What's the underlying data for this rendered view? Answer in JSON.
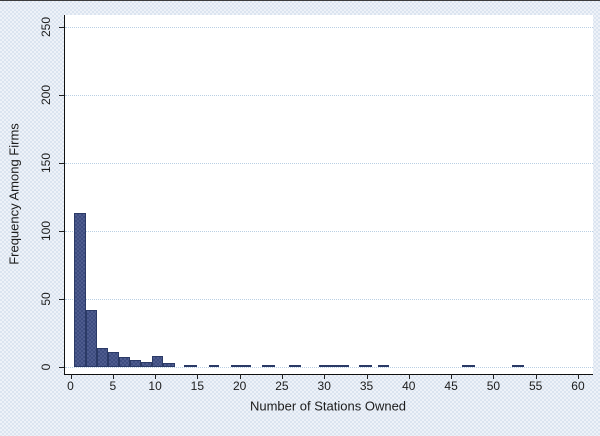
{
  "chart": {
    "xlabel": "Number of Stations Owned",
    "ylabel": "Frequency Among Firms"
  },
  "chart_data": {
    "type": "bar",
    "subtype": "histogram",
    "title": "",
    "xlabel": "Number of Stations Owned",
    "ylabel": "Frequency Among Firms",
    "xlim": [
      0,
      60
    ],
    "ylim": [
      0,
      250
    ],
    "xticks": [
      0,
      5,
      10,
      15,
      20,
      25,
      30,
      35,
      40,
      45,
      50,
      55,
      60
    ],
    "yticks": [
      0,
      50,
      100,
      150,
      200,
      250
    ],
    "grid": "horizontal-dotted",
    "legend": "none",
    "y_tick_label_rotation": 90,
    "bins": [
      {
        "x0": 0.45,
        "x1": 1.8,
        "count": 113
      },
      {
        "x0": 1.8,
        "x1": 3.1,
        "count": 42
      },
      {
        "x0": 3.1,
        "x1": 4.4,
        "count": 14
      },
      {
        "x0": 4.4,
        "x1": 5.72,
        "count": 11
      },
      {
        "x0": 5.72,
        "x1": 7.02,
        "count": 7
      },
      {
        "x0": 7.02,
        "x1": 8.33,
        "count": 5
      },
      {
        "x0": 8.33,
        "x1": 9.63,
        "count": 4
      },
      {
        "x0": 9.63,
        "x1": 10.94,
        "count": 8
      },
      {
        "x0": 10.94,
        "x1": 12.3,
        "count": 3
      },
      {
        "x0": 13.45,
        "x1": 14.9,
        "count": 1
      },
      {
        "x0": 16.4,
        "x1": 17.6,
        "count": 1
      },
      {
        "x0": 19.0,
        "x1": 21.4,
        "count": 1
      },
      {
        "x0": 22.6,
        "x1": 24.2,
        "count": 1
      },
      {
        "x0": 25.8,
        "x1": 27.3,
        "count": 1
      },
      {
        "x0": 29.4,
        "x1": 32.9,
        "count": 1
      },
      {
        "x0": 34.1,
        "x1": 35.7,
        "count": 1
      },
      {
        "x0": 36.3,
        "x1": 37.7,
        "count": 1
      },
      {
        "x0": 46.3,
        "x1": 47.8,
        "count": 1
      },
      {
        "x0": 52.2,
        "x1": 53.6,
        "count": 1
      }
    ],
    "colors": {
      "bar_fill": "#4e5c8e",
      "bar_edge": "#2b3a66",
      "gridline": "#b9cfe3",
      "plot_background": "#ffffff",
      "page_background": "#e7edf6",
      "axis_line": "#111111",
      "text": "#1c1c1c"
    }
  }
}
